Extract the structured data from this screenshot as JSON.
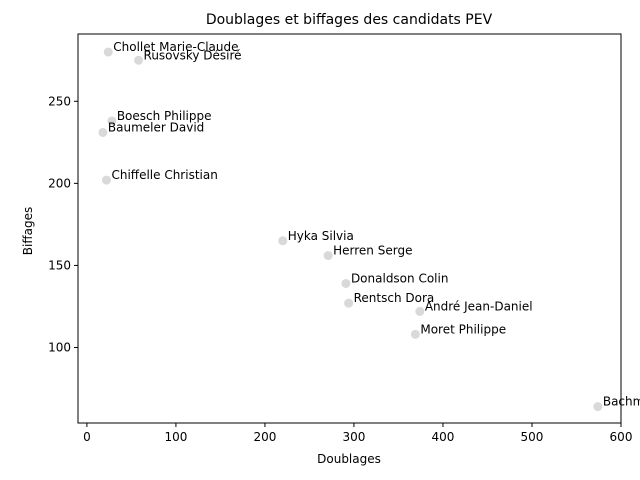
{
  "chart_data": {
    "type": "scatter",
    "title": "Doublages et biffages des candidats PEV",
    "xlabel": "Doublages",
    "ylabel": "Biffages",
    "xlim": [
      -10,
      600
    ],
    "ylim": [
      54,
      291
    ],
    "xticks": [
      0,
      100,
      200,
      300,
      400,
      500,
      600
    ],
    "yticks": [
      100,
      150,
      200,
      250
    ],
    "grid": false,
    "point_color": "#d9d9d9",
    "points": [
      {
        "label": "Chollet Marie-Claude",
        "x": 24,
        "y": 280
      },
      {
        "label": "Rusovsky Désiré",
        "x": 58,
        "y": 275
      },
      {
        "label": "Boesch Philippe",
        "x": 28,
        "y": 238
      },
      {
        "label": "Baumeler David",
        "x": 18,
        "y": 231
      },
      {
        "label": "Chiffelle Christian",
        "x": 22,
        "y": 202
      },
      {
        "label": "Hyka Silvia",
        "x": 220,
        "y": 165
      },
      {
        "label": "Herren Serge",
        "x": 271,
        "y": 156
      },
      {
        "label": "Donaldson Colin",
        "x": 291,
        "y": 139
      },
      {
        "label": "Rentsch Dora",
        "x": 294,
        "y": 127
      },
      {
        "label": "André Jean-Daniel",
        "x": 374,
        "y": 122
      },
      {
        "label": "Moret Philippe",
        "x": 369,
        "y": 108
      },
      {
        "label": "Bachm",
        "x": 574,
        "y": 64
      }
    ]
  }
}
